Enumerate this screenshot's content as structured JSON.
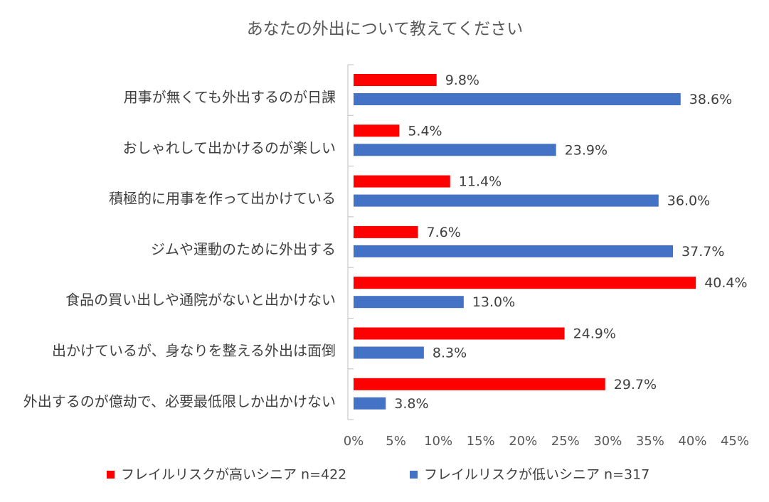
{
  "chart_data": {
    "type": "bar",
    "orientation": "horizontal",
    "title": "あなたの外出について教えてください",
    "categories": [
      "用事が無くても外出するのが日課",
      "おしゃれして出かけるのが楽しい",
      "積極的に用事を作って出かけている",
      "ジムや運動のために外出する",
      "食品の買い出しや通院がないと出かけない",
      "出かけているが、身なりを整える外出は面倒",
      "外出するのが億劫で、必要最低限しか出かけない"
    ],
    "series": [
      {
        "name": "フレイルリスクが高いシニア n=422",
        "color": "#FF0000",
        "values": [
          9.8,
          5.4,
          11.4,
          7.6,
          40.4,
          24.9,
          29.7
        ],
        "labels": [
          "9.8%",
          "5.4%",
          "11.4%",
          "7.6%",
          "40.4%",
          "24.9%",
          "29.7%"
        ]
      },
      {
        "name": "フレイルリスクが低いシニア n=317",
        "color": "#4472C4",
        "values": [
          38.6,
          23.9,
          36.0,
          37.7,
          13.0,
          8.3,
          3.8
        ],
        "labels": [
          "38.6%",
          "23.9%",
          "36.0%",
          "37.7%",
          "13.0%",
          "8.3%",
          "3.8%"
        ]
      }
    ],
    "xlim": [
      0,
      45
    ],
    "xticks": [
      0,
      5,
      10,
      15,
      20,
      25,
      30,
      35,
      40,
      45
    ],
    "xtick_labels": [
      "0%",
      "5%",
      "10%",
      "15%",
      "20%",
      "25%",
      "30%",
      "35%",
      "40%",
      "45%"
    ],
    "xlabel": "",
    "ylabel": "",
    "grid": false,
    "legend": "bottom",
    "axis_color": "#BFBFBF"
  }
}
